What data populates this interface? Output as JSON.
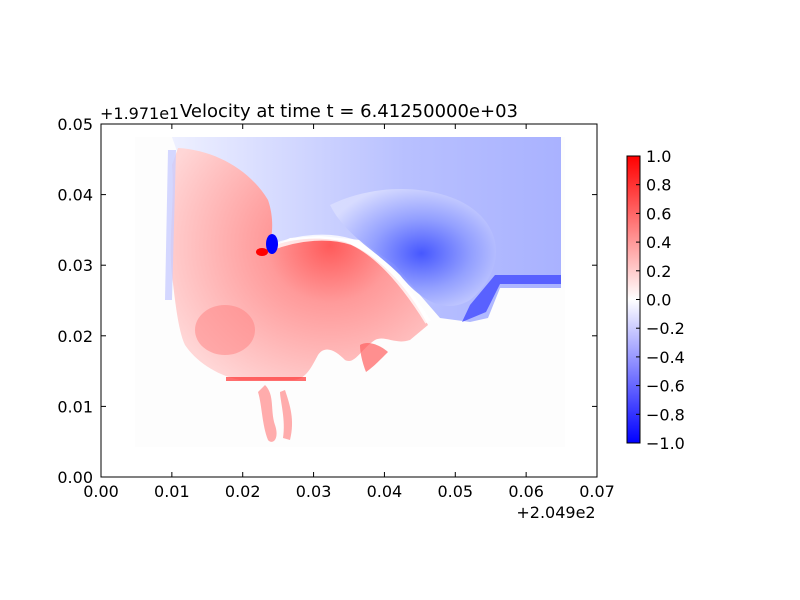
{
  "chart_data": {
    "type": "heatmap",
    "title": "Velocity at time t = 6.41250000e+03",
    "x_offset_label": "+2.049e2",
    "y_offset_label": "+1.971e1",
    "xlim": [
      0.0,
      0.07
    ],
    "ylim": [
      0.0,
      0.05
    ],
    "x_ticks": [
      "0.00",
      "0.01",
      "0.02",
      "0.03",
      "0.04",
      "0.05",
      "0.06",
      "0.07"
    ],
    "y_ticks": [
      "0.00",
      "0.01",
      "0.02",
      "0.03",
      "0.04",
      "0.05"
    ],
    "colorbar": {
      "colormap": "bwr",
      "min": -1.0,
      "max": 1.0,
      "ticks": [
        "1.0",
        "0.8",
        "0.6",
        "0.4",
        "0.2",
        "0.0",
        "−0.2",
        "−0.4",
        "−0.6",
        "−0.8",
        "−1.0"
      ],
      "colors": {
        "low": "#0000ff",
        "mid": "#ffffff",
        "high": "#ff0000"
      }
    },
    "regions": [
      {
        "name": "positive-lobe",
        "approx_value": 0.4
      },
      {
        "name": "negative-offshore-area",
        "approx_value": -0.35
      },
      {
        "name": "strong-negative-spot",
        "approx_value": -1.0
      },
      {
        "name": "strong-positive-spot",
        "approx_value": 1.0
      }
    ]
  }
}
